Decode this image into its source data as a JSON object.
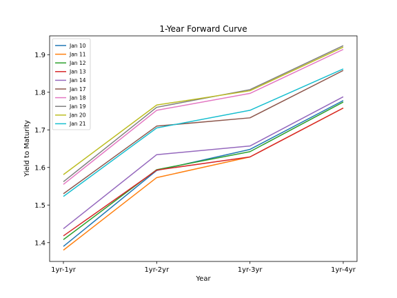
{
  "chart_data": {
    "type": "line",
    "title": "1-Year Forward Curve",
    "xlabel": "Year",
    "ylabel": "Yield to Maturity",
    "categories": [
      "1yr-1yr",
      "1yr-2yr",
      "1yr-3yr",
      "1yr-4yr"
    ],
    "ylim": [
      1.35,
      1.95
    ],
    "yticks": [
      1.4,
      1.5,
      1.6,
      1.7,
      1.8,
      1.9
    ],
    "grid": false,
    "legend_position": "top-left",
    "series": [
      {
        "name": "Jan 10",
        "color": "#1f77b4",
        "values": [
          1.39,
          1.592,
          1.648,
          1.778
        ]
      },
      {
        "name": "Jan 11",
        "color": "#ff7f0e",
        "values": [
          1.38,
          1.573,
          1.628,
          1.758
        ]
      },
      {
        "name": "Jan 12",
        "color": "#2ca02c",
        "values": [
          1.408,
          1.594,
          1.642,
          1.774
        ]
      },
      {
        "name": "Jan 13",
        "color": "#d62728",
        "values": [
          1.418,
          1.593,
          1.628,
          1.758
        ]
      },
      {
        "name": "Jan 14",
        "color": "#9467bd",
        "values": [
          1.437,
          1.634,
          1.657,
          1.788
        ]
      },
      {
        "name": "Jan 17",
        "color": "#8c564b",
        "values": [
          1.53,
          1.71,
          1.732,
          1.858
        ]
      },
      {
        "name": "Jan 18",
        "color": "#e377c2",
        "values": [
          1.555,
          1.752,
          1.797,
          1.914
        ]
      },
      {
        "name": "Jan 19",
        "color": "#7f7f7f",
        "values": [
          1.562,
          1.76,
          1.807,
          1.924
        ]
      },
      {
        "name": "Jan 20",
        "color": "#bcbd22",
        "values": [
          1.581,
          1.766,
          1.804,
          1.92
        ]
      },
      {
        "name": "Jan 21",
        "color": "#17becf",
        "values": [
          1.523,
          1.705,
          1.752,
          1.862
        ]
      }
    ]
  }
}
